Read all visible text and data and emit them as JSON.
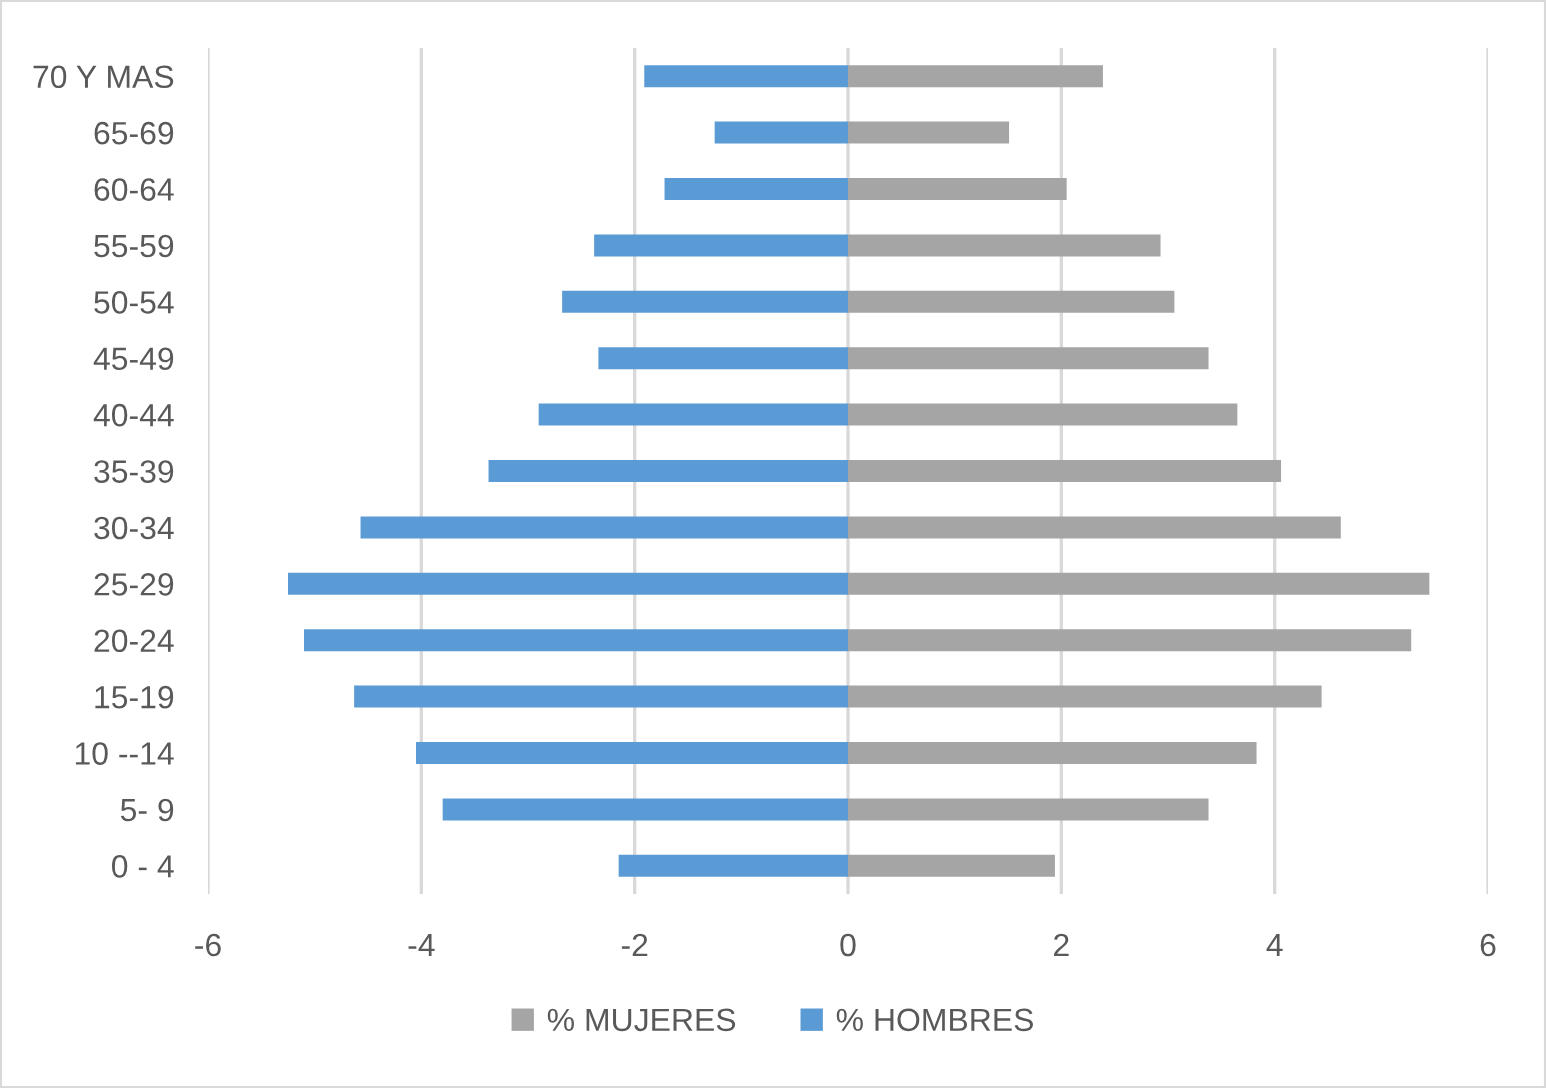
{
  "chart_data": {
    "type": "bar",
    "orientation": "horizontal",
    "stacked": true,
    "categories": [
      "70 Y MAS",
      "65-69",
      "60-64",
      "55-59",
      "50-54",
      "45-49",
      "40-44",
      "35-39",
      "30-34",
      "25-29",
      "20-24",
      "15-19",
      "10 --14",
      "5- 9",
      "0 - 4"
    ],
    "series": [
      {
        "name": "% MUJERES",
        "color": "#a5a5a5",
        "values": [
          2.39,
          1.51,
          2.05,
          2.93,
          3.06,
          3.38,
          3.65,
          4.06,
          4.62,
          5.45,
          5.28,
          4.44,
          3.83,
          3.38,
          1.94
        ]
      },
      {
        "name": "% HOMBRES",
        "color": "#5b9bd5",
        "values": [
          -1.91,
          -1.25,
          -1.72,
          -2.38,
          -2.68,
          -2.34,
          -2.9,
          -3.37,
          -4.57,
          -5.25,
          -5.1,
          -4.63,
          -4.05,
          -3.8,
          -2.15
        ]
      }
    ],
    "xlim": [
      -6,
      6
    ],
    "xticks": [
      -6,
      -4,
      -2,
      0,
      2,
      4,
      6
    ],
    "grid": "x",
    "legend": "bottom"
  }
}
